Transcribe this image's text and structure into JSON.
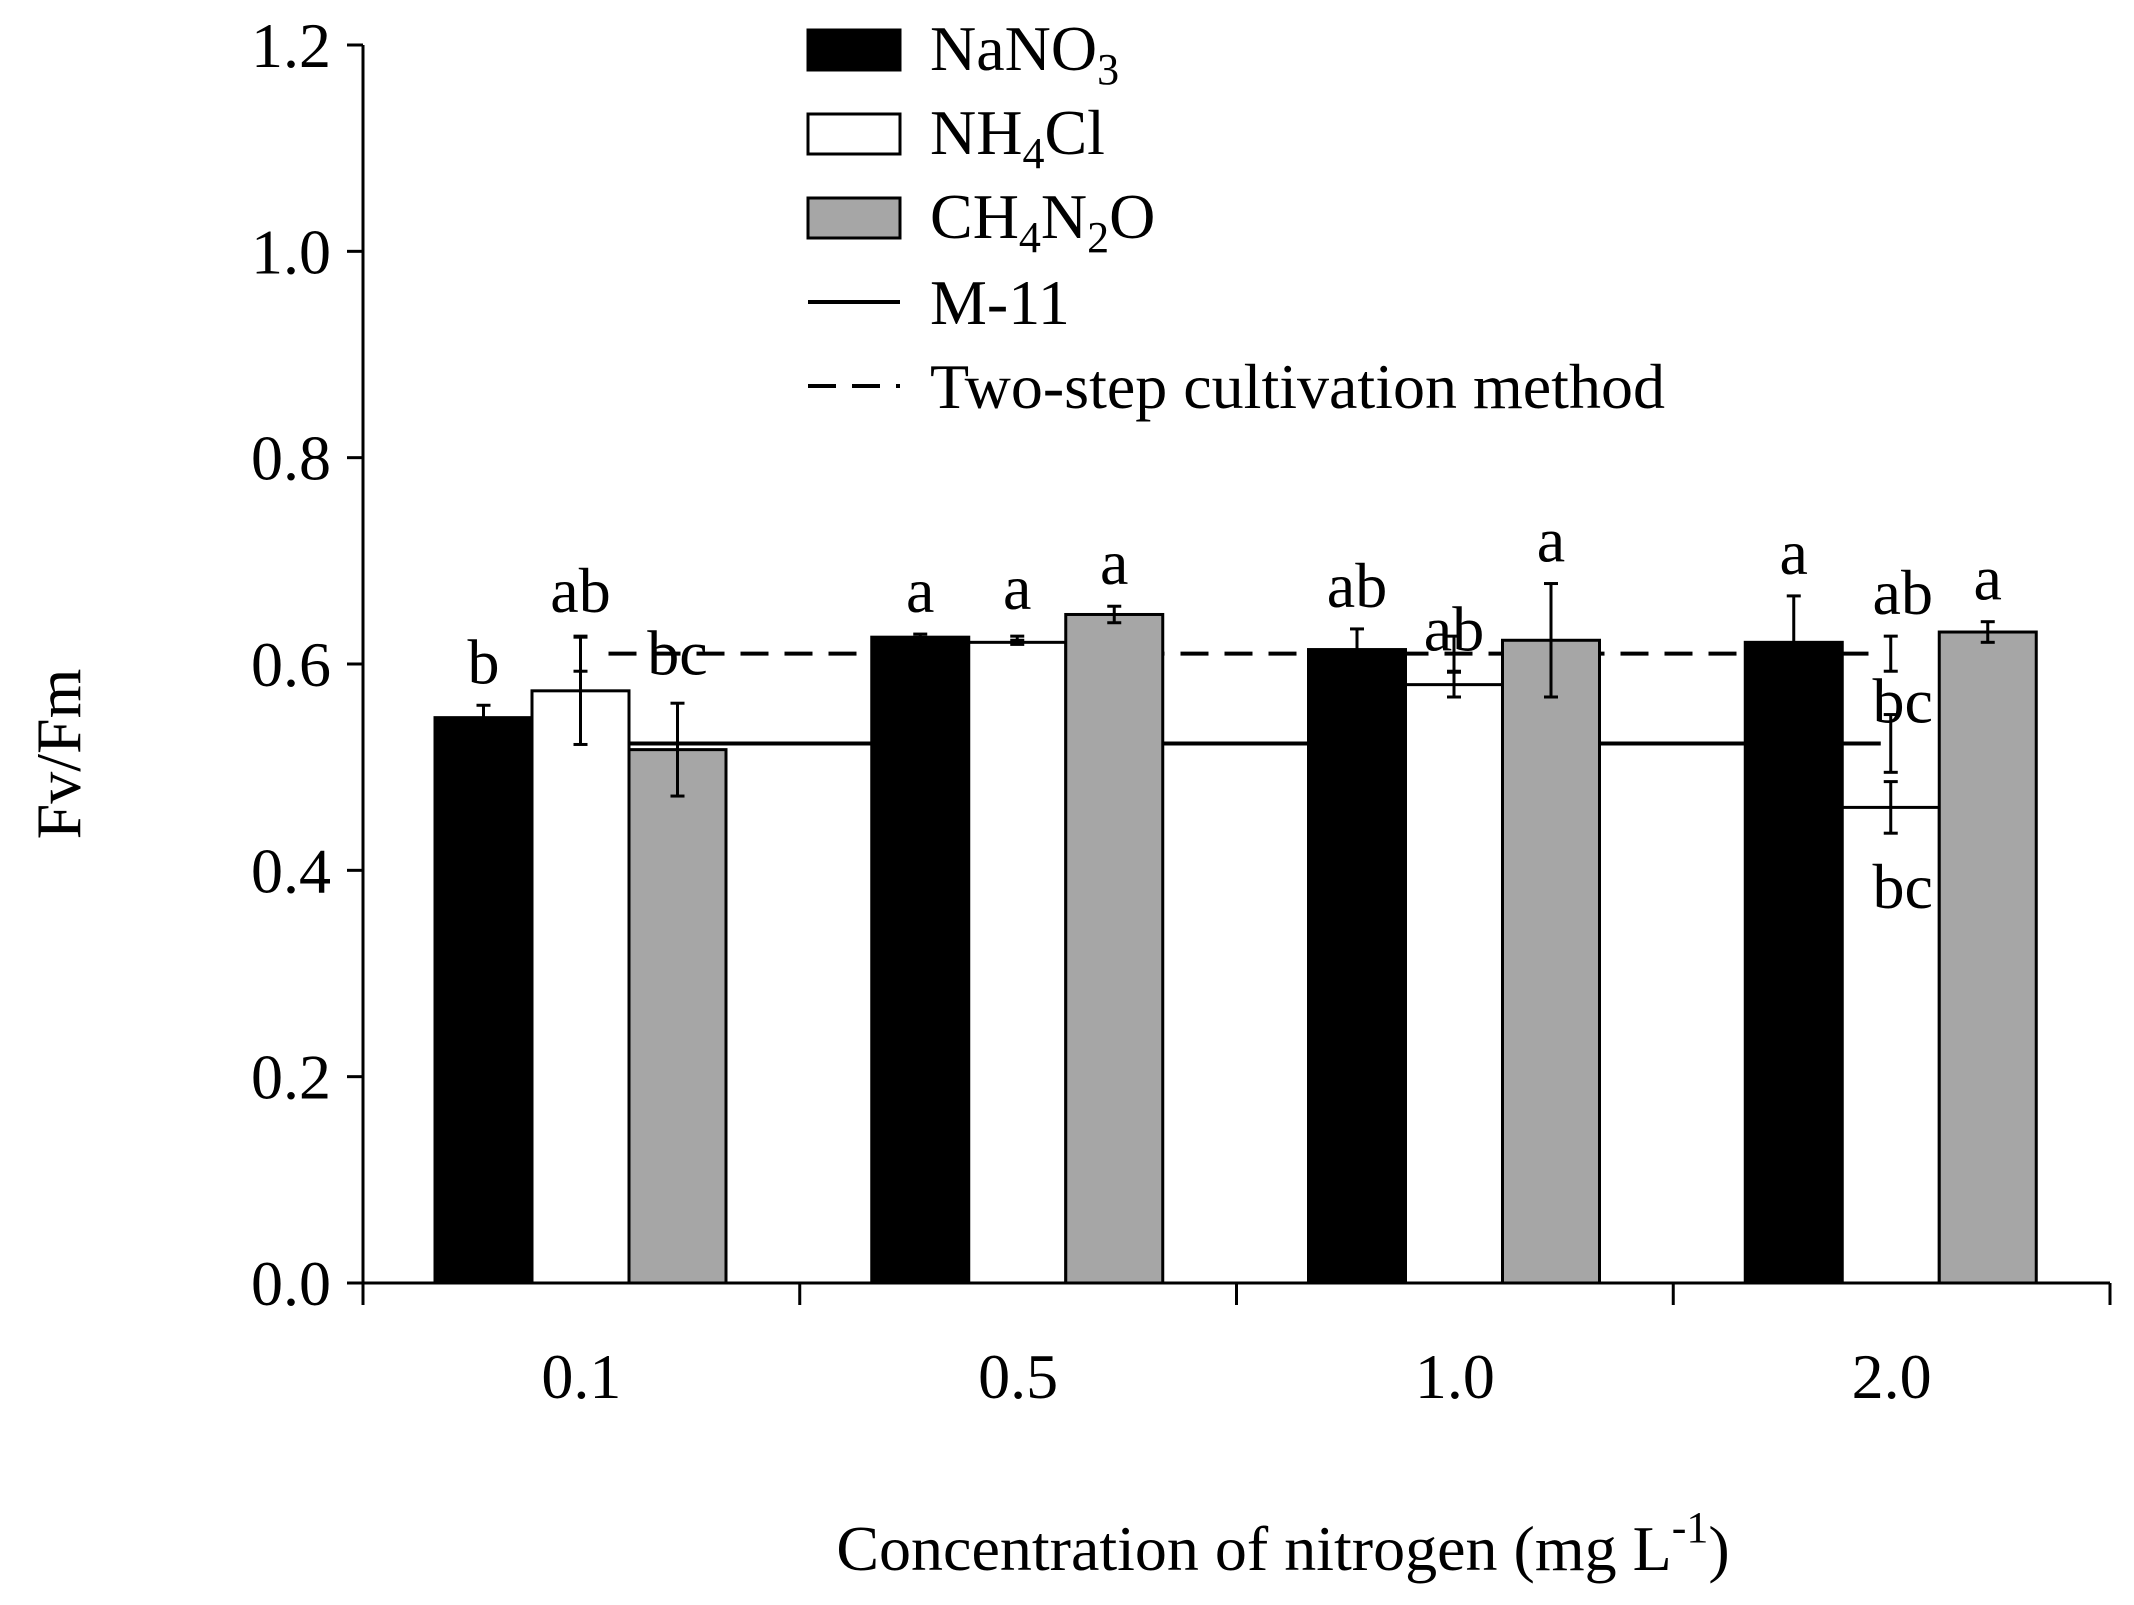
{
  "chart_data": {
    "type": "bar",
    "title": "",
    "xlabel": "Concentration of nitrogen (mg L",
    "xlabel_sup": "-1",
    "xlabel_close": ")",
    "ylabel": "Fv/Fm",
    "ylim": [
      0,
      1.2
    ],
    "yticks": [
      0.0,
      0.2,
      0.4,
      0.6,
      0.8,
      1.0,
      1.2
    ],
    "ytick_labels": [
      "0.0",
      "0.2",
      "0.4",
      "0.6",
      "0.8",
      "1.0",
      "1.2"
    ],
    "categories": [
      "0.1",
      "0.5",
      "1.0",
      "2.0"
    ],
    "grid": false,
    "legend_position": "top-center",
    "series": [
      {
        "name": "NaNO3",
        "label_parts": [
          [
            "NaNO",
            ""
          ],
          [
            "3",
            "sub"
          ]
        ],
        "fill": "#000000",
        "values": [
          0.548,
          0.626,
          0.614,
          0.621
        ],
        "errors": [
          0.012,
          0.003,
          0.02,
          0.045
        ],
        "sig_labels": [
          "b",
          "a",
          "ab",
          "a"
        ]
      },
      {
        "name": "NH4Cl",
        "label_parts": [
          [
            "NH",
            ""
          ],
          [
            "4",
            "sub"
          ],
          [
            "Cl",
            ""
          ]
        ],
        "fill": "#ffffff",
        "values": [
          0.574,
          0.621,
          0.58,
          0.461
        ],
        "errors": [
          0.052,
          0.002,
          0.012,
          0.025
        ],
        "sig_labels": [
          "ab",
          "a",
          "ab",
          "bc"
        ]
      },
      {
        "name": "CH4N2O",
        "label_parts": [
          [
            "CH",
            ""
          ],
          [
            "4",
            "sub"
          ],
          [
            "N",
            ""
          ],
          [
            "2",
            "sub"
          ],
          [
            "O",
            ""
          ]
        ],
        "fill": "#a6a6a6",
        "values": [
          0.517,
          0.648,
          0.623,
          0.631
        ],
        "errors": [
          0.045,
          0.008,
          0.055,
          0.01
        ],
        "sig_labels": [
          "bc",
          "a",
          "a",
          "a"
        ]
      }
    ],
    "reference_lines": [
      {
        "name": "M-11",
        "style": "solid",
        "value": 0.523,
        "errors": [
          0.028,
          0.028,
          0.028,
          0.028
        ],
        "sig_label": "bc"
      },
      {
        "name": "Two-step cultivation method",
        "style": "dashed",
        "value": 0.61,
        "errors": [
          0.017,
          0.017,
          0.017,
          0.017
        ],
        "sig_label": "ab"
      }
    ]
  }
}
